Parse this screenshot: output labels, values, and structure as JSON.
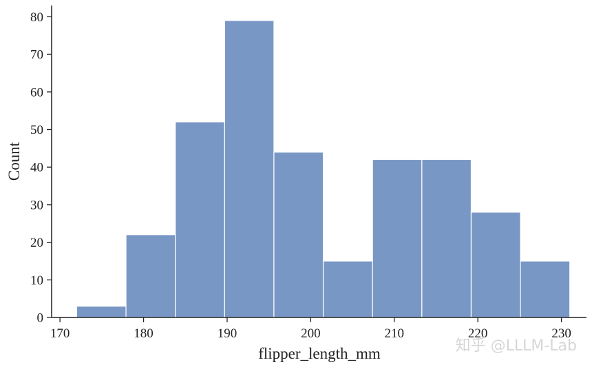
{
  "chart_data": {
    "type": "histogram",
    "bin_edges": [
      172.0,
      177.9,
      183.8,
      189.7,
      195.6,
      201.5,
      207.4,
      213.3,
      219.2,
      225.1,
      231.0
    ],
    "values": [
      3,
      22,
      52,
      79,
      44,
      15,
      42,
      42,
      28,
      15
    ],
    "xlabel": "flipper_length_mm",
    "ylabel": "Count",
    "xlim": [
      169,
      233
    ],
    "ylim": [
      0,
      83
    ],
    "x_ticks": [
      170,
      180,
      190,
      200,
      210,
      220,
      230
    ],
    "y_ticks": [
      0,
      10,
      20,
      30,
      40,
      50,
      60,
      70,
      80
    ],
    "bar_color": "#7897c4",
    "edge_color": "#ffffff",
    "grid": false,
    "legend": "none"
  },
  "watermark": "知乎 @LLLM-Lab"
}
